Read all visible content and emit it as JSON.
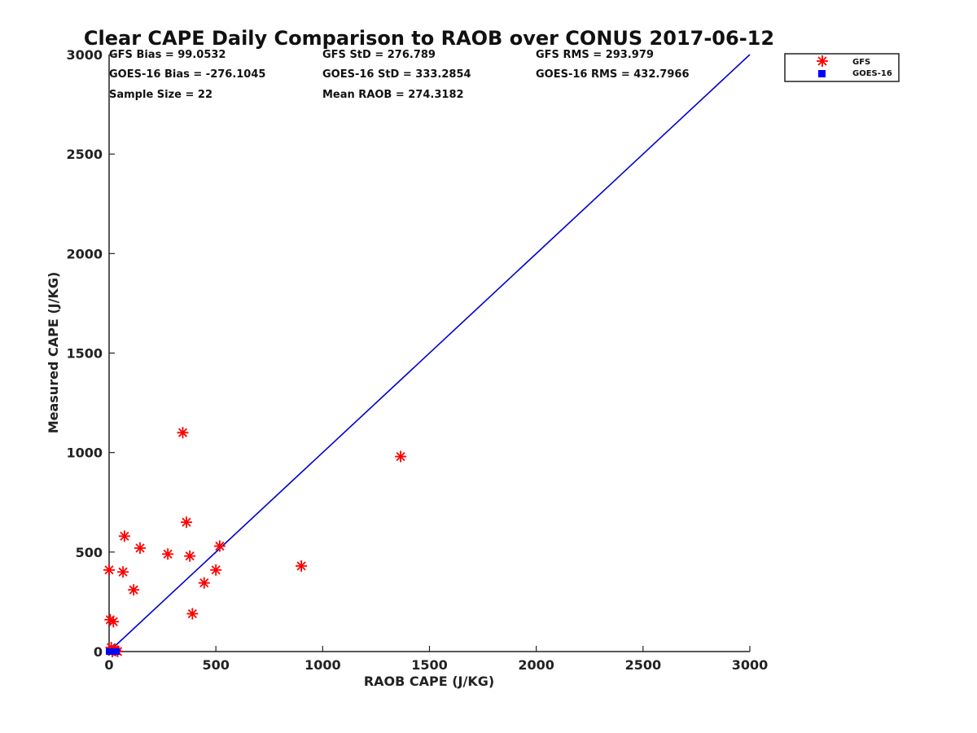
{
  "chart_data": {
    "type": "scatter",
    "title": "Clear CAPE Daily Comparison to RAOB over CONUS 2017-06-12",
    "xlabel": "RAOB CAPE (J/KG)",
    "ylabel": "Measured CAPE (J/KG)",
    "xlim": [
      0,
      3000
    ],
    "ylim": [
      0,
      3000
    ],
    "x_ticks": [
      "0",
      "500",
      "1000",
      "1500",
      "2000",
      "2500",
      "3000"
    ],
    "y_ticks": [
      "0",
      "500",
      "1000",
      "1500",
      "2000",
      "2500",
      "3000"
    ],
    "grid": false,
    "legend_position": "top-right",
    "stats": [
      "GFS Bias = 99.0532",
      "GFS StD = 276.789",
      "GFS RMS = 293.979",
      "GOES-16 Bias = -276.1045",
      "GOES-16 StD = 333.2854",
      "GOES-16 RMS = 432.7966",
      "Sample Size = 22",
      "Mean RAOB = 274.3182"
    ],
    "reference_line": {
      "x": [
        0,
        3000
      ],
      "y": [
        0,
        3000
      ],
      "color": "#0000cc"
    },
    "series": [
      {
        "name": "GFS",
        "marker": "asterisk",
        "color": "#ff0000",
        "points": [
          [
            0,
            410
          ],
          [
            5,
            160
          ],
          [
            10,
            20
          ],
          [
            20,
            150
          ],
          [
            25,
            10
          ],
          [
            30,
            5
          ],
          [
            65,
            400
          ],
          [
            72,
            580
          ],
          [
            115,
            310
          ],
          [
            145,
            520
          ],
          [
            275,
            490
          ],
          [
            345,
            1100
          ],
          [
            362,
            650
          ],
          [
            378,
            480
          ],
          [
            390,
            190
          ],
          [
            445,
            345
          ],
          [
            500,
            410
          ],
          [
            518,
            530
          ],
          [
            900,
            430
          ],
          [
            1365,
            980
          ],
          [
            40,
            0
          ],
          [
            15,
            0
          ]
        ]
      },
      {
        "name": "GOES-16",
        "marker": "square",
        "color": "#0000ff",
        "points": [
          [
            0,
            0
          ],
          [
            5,
            0
          ],
          [
            10,
            0
          ],
          [
            15,
            0
          ],
          [
            20,
            0
          ],
          [
            25,
            0
          ],
          [
            30,
            0
          ],
          [
            35,
            0
          ]
        ]
      }
    ]
  }
}
